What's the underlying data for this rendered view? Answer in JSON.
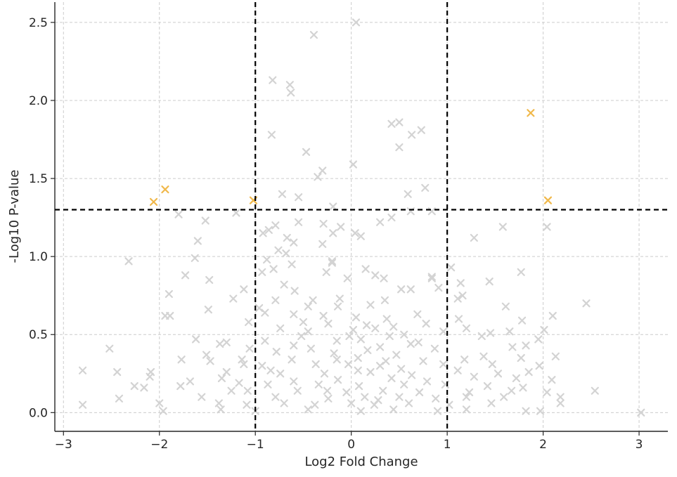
{
  "chart_data": {
    "type": "scatter",
    "marker": "x",
    "xlabel": "Log2 Fold Change",
    "ylabel": "-Log10 P-value",
    "xlim": [
      -3.09,
      3.3
    ],
    "ylim": [
      -0.12,
      2.63
    ],
    "x_ticks": [
      -3,
      -2,
      -1,
      0,
      1,
      2,
      3
    ],
    "x_tick_labels": [
      "−3",
      "−2",
      "−1",
      "0",
      "1",
      "2",
      "3"
    ],
    "y_ticks": [
      0.0,
      0.5,
      1.0,
      1.5,
      2.0,
      2.5
    ],
    "y_tick_labels": [
      "0.0",
      "0.5",
      "1.0",
      "1.5",
      "2.0",
      "2.5"
    ],
    "grid": true,
    "thresholds": {
      "x": [
        -1,
        1
      ],
      "y": [
        1.3
      ]
    },
    "colors": {
      "significant": "#f0b84a",
      "non_significant": "#d3d3d3",
      "threshold_line": "#000000",
      "grid": "#cccccc"
    },
    "series": [
      {
        "color": "#f0b84a",
        "points": [
          [
            -2.06,
            1.35
          ],
          [
            -1.94,
            1.43
          ],
          [
            -1.02,
            1.36
          ],
          [
            1.87,
            1.92
          ],
          [
            2.05,
            1.36
          ]
        ]
      },
      {
        "color": "#d3d3d3",
        "points": [
          [
            -0.39,
            2.42
          ],
          [
            0.05,
            2.5
          ],
          [
            -0.82,
            2.13
          ],
          [
            -0.64,
            2.1
          ],
          [
            -0.63,
            2.05
          ],
          [
            0.42,
            1.85
          ],
          [
            0.5,
            1.86
          ],
          [
            0.73,
            1.81
          ],
          [
            0.63,
            1.78
          ],
          [
            -0.83,
            1.78
          ],
          [
            0.5,
            1.7
          ],
          [
            -0.47,
            1.67
          ],
          [
            0.02,
            1.59
          ],
          [
            -0.3,
            1.55
          ],
          [
            -0.35,
            1.51
          ],
          [
            0.77,
            1.44
          ],
          [
            -0.72,
            1.4
          ],
          [
            0.59,
            1.4
          ],
          [
            -0.55,
            1.38
          ],
          [
            -0.19,
            1.32
          ],
          [
            0.62,
            1.29
          ],
          [
            0.84,
            1.29
          ],
          [
            -1.8,
            1.27
          ],
          [
            -1.2,
            1.28
          ],
          [
            -1.52,
            1.23
          ],
          [
            0.3,
            1.22
          ],
          [
            0.42,
            1.25
          ],
          [
            -0.55,
            1.22
          ],
          [
            -0.29,
            1.21
          ],
          [
            -0.79,
            1.2
          ],
          [
            -0.86,
            1.17
          ],
          [
            -0.92,
            1.15
          ],
          [
            -0.19,
            1.15
          ],
          [
            -0.11,
            1.19
          ],
          [
            0.04,
            1.15
          ],
          [
            0.1,
            1.13
          ],
          [
            -0.67,
            1.12
          ],
          [
            -0.6,
            1.09
          ],
          [
            -0.3,
            1.08
          ],
          [
            1.58,
            1.19
          ],
          [
            2.04,
            1.19
          ],
          [
            1.28,
            1.12
          ],
          [
            -1.6,
            1.1
          ],
          [
            -1.63,
            0.99
          ],
          [
            -0.76,
            1.04
          ],
          [
            -0.68,
            1.02
          ],
          [
            -0.88,
            0.98
          ],
          [
            -2.32,
            0.97
          ],
          [
            -0.2,
            0.97
          ],
          [
            -0.2,
            0.96
          ],
          [
            -0.62,
            0.95
          ],
          [
            -0.93,
            0.9
          ],
          [
            -0.81,
            0.92
          ],
          [
            -1.73,
            0.88
          ],
          [
            -0.26,
            0.9
          ],
          [
            0.15,
            0.92
          ],
          [
            0.25,
            0.88
          ],
          [
            0.34,
            0.86
          ],
          [
            0.84,
            0.86
          ],
          [
            0.84,
            0.87
          ],
          [
            1.04,
            0.93
          ],
          [
            1.77,
            0.9
          ],
          [
            -1.48,
            0.85
          ],
          [
            -0.7,
            0.82
          ],
          [
            -0.04,
            0.86
          ],
          [
            1.44,
            0.84
          ],
          [
            1.14,
            0.83
          ],
          [
            -1.12,
            0.79
          ],
          [
            -0.59,
            0.78
          ],
          [
            0.52,
            0.79
          ],
          [
            0.62,
            0.79
          ],
          [
            0.91,
            0.8
          ],
          [
            -1.9,
            0.76
          ],
          [
            -0.79,
            0.72
          ],
          [
            -0.4,
            0.72
          ],
          [
            -0.12,
            0.73
          ],
          [
            0.35,
            0.72
          ],
          [
            1.11,
            0.73
          ],
          [
            1.16,
            0.75
          ],
          [
            -1.23,
            0.73
          ],
          [
            2.45,
            0.7
          ],
          [
            -0.96,
            0.67
          ],
          [
            -0.45,
            0.68
          ],
          [
            -0.14,
            0.68
          ],
          [
            0.2,
            0.69
          ],
          [
            1.61,
            0.68
          ],
          [
            -1.49,
            0.66
          ],
          [
            -1.89,
            0.62
          ],
          [
            -1.94,
            0.62
          ],
          [
            -0.9,
            0.64
          ],
          [
            -0.6,
            0.63
          ],
          [
            -0.29,
            0.62
          ],
          [
            0.05,
            0.61
          ],
          [
            0.37,
            0.6
          ],
          [
            0.69,
            0.63
          ],
          [
            1.12,
            0.6
          ],
          [
            2.1,
            0.62
          ],
          [
            -1.07,
            0.58
          ],
          [
            -0.5,
            0.58
          ],
          [
            -0.24,
            0.57
          ],
          [
            0.16,
            0.56
          ],
          [
            0.44,
            0.55
          ],
          [
            0.78,
            0.57
          ],
          [
            1.78,
            0.59
          ],
          [
            -0.74,
            0.54
          ],
          [
            -0.45,
            0.52
          ],
          [
            0.02,
            0.53
          ],
          [
            0.25,
            0.54
          ],
          [
            0.55,
            0.5
          ],
          [
            0.96,
            0.52
          ],
          [
            1.2,
            0.54
          ],
          [
            1.45,
            0.51
          ],
          [
            2.01,
            0.53
          ],
          [
            -0.52,
            0.49
          ],
          [
            -0.02,
            0.49
          ],
          [
            0.4,
            0.49
          ],
          [
            1.36,
            0.49
          ],
          [
            1.65,
            0.52
          ],
          [
            -1.62,
            0.47
          ],
          [
            -1.3,
            0.45
          ],
          [
            -0.9,
            0.46
          ],
          [
            -0.15,
            0.46
          ],
          [
            0.1,
            0.47
          ],
          [
            0.62,
            0.44
          ],
          [
            1.95,
            0.47
          ],
          [
            -2.52,
            0.41
          ],
          [
            -1.37,
            0.44
          ],
          [
            -1.06,
            0.41
          ],
          [
            -0.42,
            0.41
          ],
          [
            0.3,
            0.42
          ],
          [
            0.87,
            0.41
          ],
          [
            1.68,
            0.42
          ],
          [
            1.82,
            0.43
          ],
          [
            -1.51,
            0.37
          ],
          [
            -0.78,
            0.39
          ],
          [
            -0.18,
            0.38
          ],
          [
            0.47,
            0.37
          ],
          [
            1.38,
            0.36
          ],
          [
            2.13,
            0.36
          ],
          [
            -1.47,
            0.33
          ],
          [
            -1.14,
            0.34
          ],
          [
            -0.62,
            0.34
          ],
          [
            0.07,
            0.35
          ],
          [
            0.75,
            0.33
          ],
          [
            1.18,
            0.34
          ],
          [
            1.77,
            0.35
          ],
          [
            -1.77,
            0.34
          ],
          [
            -1.12,
            0.31
          ],
          [
            -0.93,
            0.3
          ],
          [
            -0.37,
            0.31
          ],
          [
            0.3,
            0.3
          ],
          [
            0.96,
            0.31
          ],
          [
            1.47,
            0.31
          ],
          [
            1.96,
            0.3
          ],
          [
            -2.8,
            0.27
          ],
          [
            -2.44,
            0.26
          ],
          [
            -2.09,
            0.26
          ],
          [
            -2.1,
            0.23
          ],
          [
            -1.3,
            0.26
          ],
          [
            -0.74,
            0.25
          ],
          [
            -0.28,
            0.25
          ],
          [
            0.2,
            0.26
          ],
          [
            0.63,
            0.24
          ],
          [
            1.11,
            0.27
          ],
          [
            1.53,
            0.25
          ],
          [
            1.85,
            0.26
          ],
          [
            -1.35,
            0.22
          ],
          [
            -0.6,
            0.2
          ],
          [
            -0.14,
            0.21
          ],
          [
            0.42,
            0.22
          ],
          [
            1.28,
            0.23
          ],
          [
            1.72,
            0.22
          ],
          [
            2.09,
            0.21
          ],
          [
            -2.26,
            0.17
          ],
          [
            -2.16,
            0.16
          ],
          [
            -1.68,
            0.2
          ],
          [
            -1.78,
            0.17
          ],
          [
            -1.17,
            0.19
          ],
          [
            -0.87,
            0.18
          ],
          [
            -0.34,
            0.18
          ],
          [
            0.08,
            0.17
          ],
          [
            0.55,
            0.18
          ],
          [
            0.98,
            0.18
          ],
          [
            1.42,
            0.17
          ],
          [
            1.79,
            0.16
          ],
          [
            -1.25,
            0.14
          ],
          [
            -1.08,
            0.14
          ],
          [
            -0.56,
            0.14
          ],
          [
            -0.05,
            0.13
          ],
          [
            0.33,
            0.14
          ],
          [
            0.71,
            0.13
          ],
          [
            1.23,
            0.13
          ],
          [
            1.67,
            0.14
          ],
          [
            2.04,
            0.13
          ],
          [
            2.54,
            0.14
          ],
          [
            -2.42,
            0.09
          ],
          [
            -1.56,
            0.1
          ],
          [
            -0.79,
            0.1
          ],
          [
            -0.24,
            0.09
          ],
          [
            0.14,
            0.1
          ],
          [
            0.5,
            0.1
          ],
          [
            0.88,
            0.09
          ],
          [
            1.2,
            0.1
          ],
          [
            1.59,
            0.1
          ],
          [
            2.18,
            0.1
          ],
          [
            -2.8,
            0.05
          ],
          [
            -2.0,
            0.06
          ],
          [
            -1.38,
            0.06
          ],
          [
            -1.09,
            0.05
          ],
          [
            -0.7,
            0.06
          ],
          [
            -0.38,
            0.05
          ],
          [
            0.0,
            0.06
          ],
          [
            0.24,
            0.05
          ],
          [
            0.6,
            0.06
          ],
          [
            1.02,
            0.05
          ],
          [
            1.46,
            0.06
          ],
          [
            2.18,
            0.06
          ],
          [
            -1.96,
            0.01
          ],
          [
            -1.36,
            0.02
          ],
          [
            -1.0,
            0.01
          ],
          [
            -0.45,
            0.02
          ],
          [
            0.1,
            0.01
          ],
          [
            0.44,
            0.02
          ],
          [
            0.9,
            0.01
          ],
          [
            1.2,
            0.02
          ],
          [
            1.97,
            0.01
          ],
          [
            3.02,
            0.0
          ],
          [
            1.82,
            0.01
          ],
          [
            0.07,
            0.27
          ],
          [
            0.52,
            0.28
          ],
          [
            0.17,
            0.4
          ],
          [
            -0.6,
            0.43
          ],
          [
            -0.03,
            0.31
          ],
          [
            0.36,
            0.33
          ],
          [
            0.7,
            0.45
          ],
          [
            -0.25,
            0.14
          ],
          [
            -0.15,
            0.34
          ],
          [
            0.28,
            0.08
          ],
          [
            0.79,
            0.2
          ],
          [
            -0.84,
            0.27
          ]
        ]
      }
    ]
  }
}
